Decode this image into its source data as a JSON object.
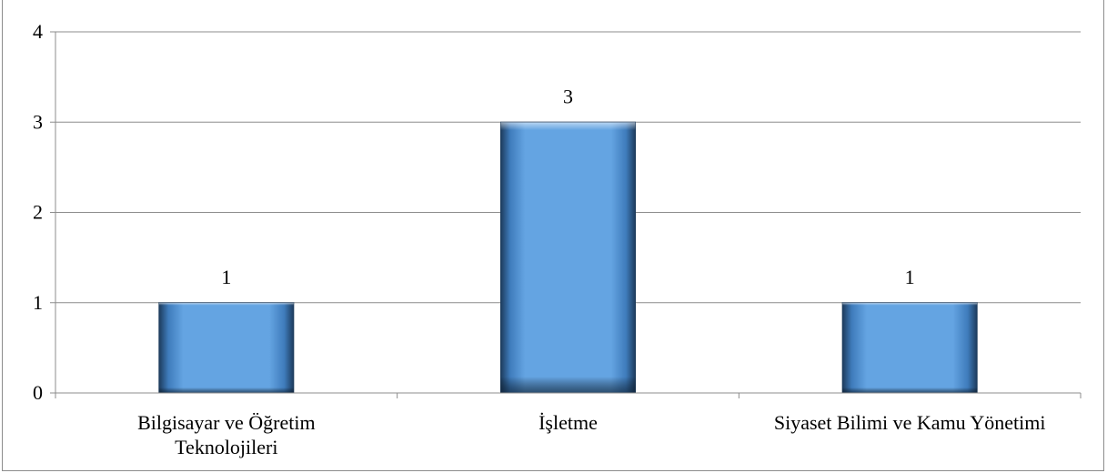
{
  "chart_data": {
    "type": "bar",
    "title": "",
    "xlabel": "",
    "ylabel": "",
    "categories": [
      [
        "Bilgisayar ve Öğretim",
        "Teknolojileri"
      ],
      [
        "İşletme"
      ],
      [
        "Siyaset Bilimi ve Kamu Yönetimi"
      ]
    ],
    "values": [
      1,
      3,
      1
    ],
    "data_labels": [
      "1",
      "3",
      "1"
    ],
    "ylim": [
      0,
      4
    ],
    "yticks": [
      "0",
      "1",
      "2",
      "3",
      "4"
    ],
    "grid": true,
    "bar_color": "#63a3e0",
    "bar_edge_color": "#1c3b5c"
  }
}
